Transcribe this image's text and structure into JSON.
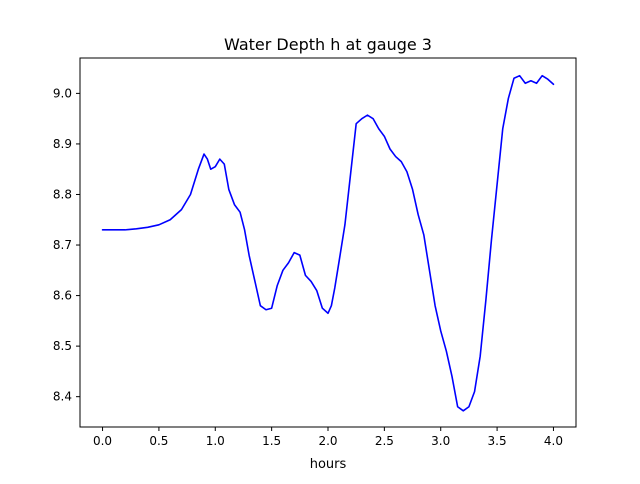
{
  "chart_data": {
    "type": "line",
    "title": "Water Depth h at gauge 3",
    "xlabel": "hours",
    "ylabel": "",
    "xlim": [
      -0.2,
      4.2
    ],
    "ylim": [
      8.34,
      9.07
    ],
    "xticks": [
      0.0,
      0.5,
      1.0,
      1.5,
      2.0,
      2.5,
      3.0,
      3.5,
      4.0
    ],
    "xtick_labels": [
      "0.0",
      "0.5",
      "1.0",
      "1.5",
      "2.0",
      "2.5",
      "3.0",
      "3.5",
      "4.0"
    ],
    "yticks": [
      8.4,
      8.5,
      8.6,
      8.7,
      8.8,
      8.9,
      9.0
    ],
    "ytick_labels": [
      "8.4",
      "8.5",
      "8.6",
      "8.7",
      "8.8",
      "8.9",
      "9.0"
    ],
    "grid": false,
    "series": [
      {
        "color": "#0000ff",
        "x": [
          0.0,
          0.1,
          0.2,
          0.3,
          0.4,
          0.5,
          0.6,
          0.7,
          0.78,
          0.85,
          0.9,
          0.93,
          0.96,
          1.0,
          1.04,
          1.08,
          1.12,
          1.17,
          1.22,
          1.26,
          1.3,
          1.35,
          1.4,
          1.45,
          1.5,
          1.55,
          1.6,
          1.65,
          1.7,
          1.75,
          1.8,
          1.85,
          1.9,
          1.95,
          2.0,
          2.03,
          2.06,
          2.1,
          2.15,
          2.2,
          2.25,
          2.3,
          2.35,
          2.4,
          2.45,
          2.5,
          2.55,
          2.6,
          2.65,
          2.7,
          2.75,
          2.8,
          2.85,
          2.9,
          2.95,
          3.0,
          3.05,
          3.1,
          3.15,
          3.2,
          3.25,
          3.3,
          3.35,
          3.4,
          3.45,
          3.5,
          3.55,
          3.6,
          3.65,
          3.7,
          3.75,
          3.8,
          3.85,
          3.9,
          3.95,
          4.0
        ],
        "y": [
          8.73,
          8.73,
          8.73,
          8.732,
          8.735,
          8.74,
          8.75,
          8.77,
          8.8,
          8.85,
          8.88,
          8.87,
          8.85,
          8.855,
          8.87,
          8.86,
          8.81,
          8.78,
          8.765,
          8.73,
          8.68,
          8.63,
          8.58,
          8.572,
          8.575,
          8.62,
          8.65,
          8.665,
          8.685,
          8.68,
          8.64,
          8.628,
          8.61,
          8.575,
          8.565,
          8.58,
          8.615,
          8.67,
          8.74,
          8.84,
          8.94,
          8.95,
          8.957,
          8.95,
          8.93,
          8.915,
          8.89,
          8.875,
          8.865,
          8.845,
          8.81,
          8.76,
          8.72,
          8.65,
          8.58,
          8.53,
          8.49,
          8.44,
          8.38,
          8.372,
          8.38,
          8.41,
          8.48,
          8.59,
          8.71,
          8.82,
          8.93,
          8.99,
          9.03,
          9.035,
          9.02,
          9.025,
          9.02,
          9.035,
          9.028,
          9.018
        ]
      }
    ]
  }
}
